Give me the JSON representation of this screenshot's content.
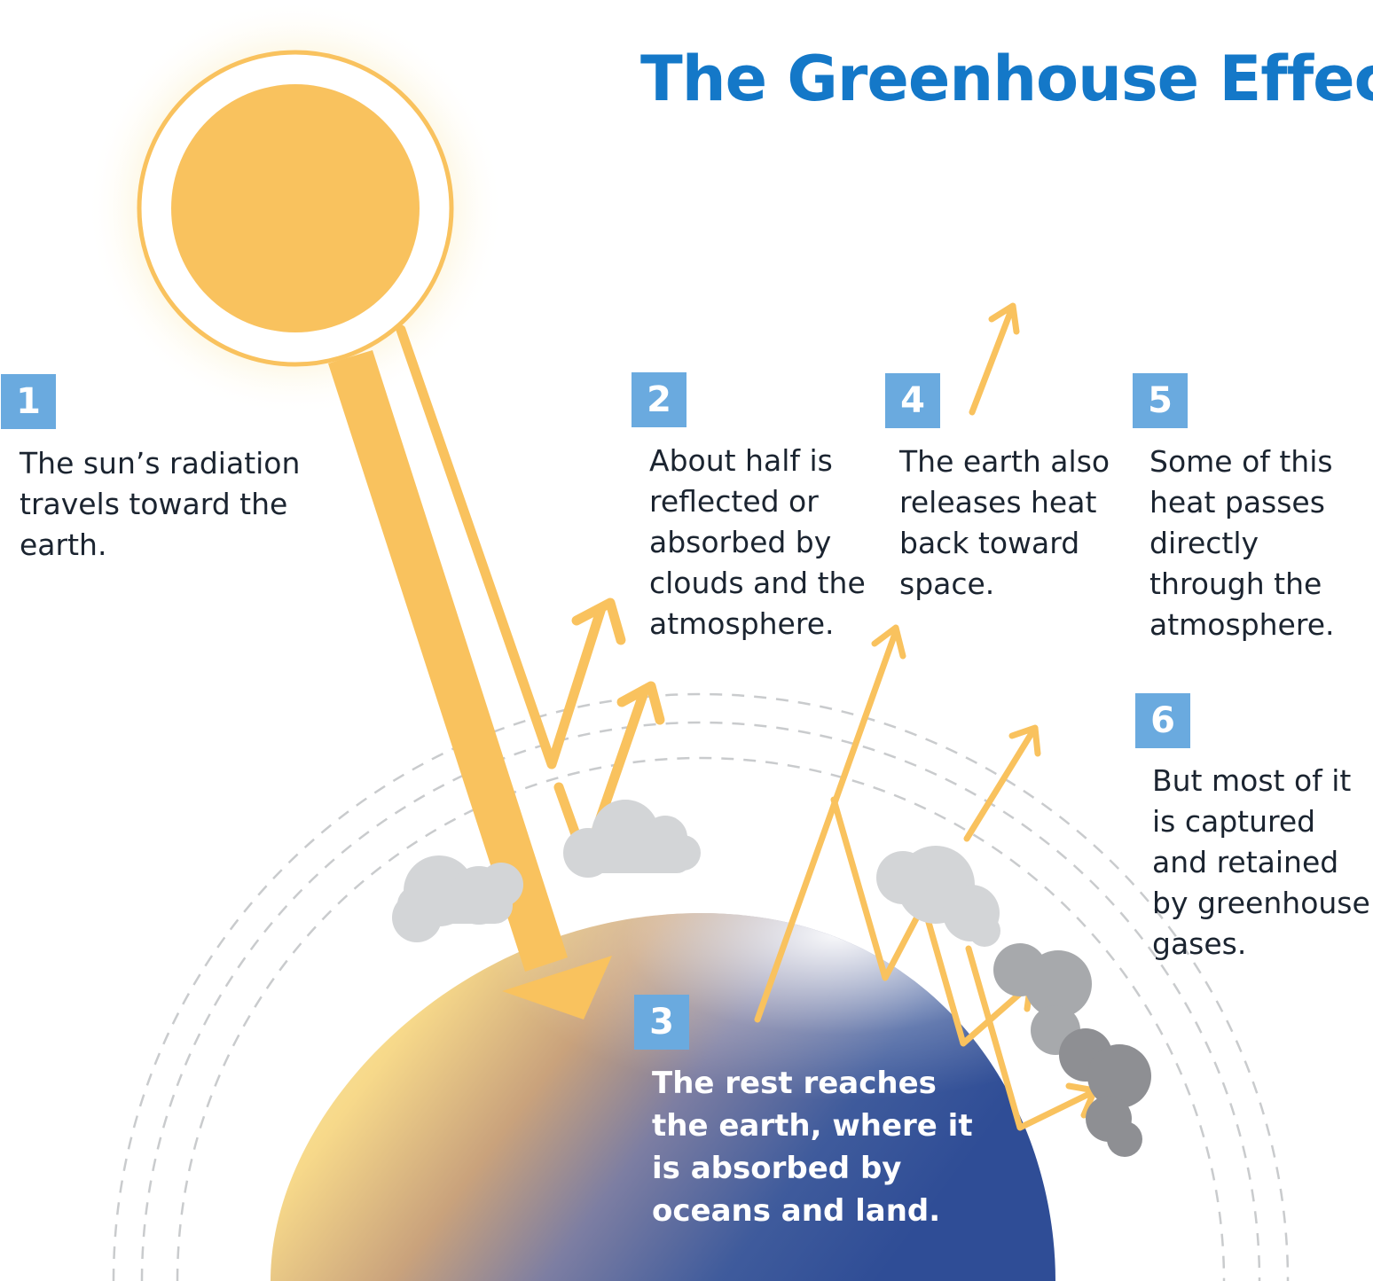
{
  "title": "The Greenhouse Effect",
  "colors": {
    "title": "#1478c8",
    "badge": "#6aaadf",
    "sun": "#f9c25e",
    "arrow": "#f9c25e",
    "earth_warm": "#f7d98a",
    "earth_cool": "#2f4d96",
    "cloud_light": "#d3d5d7",
    "cloud_dark": "#8e8f93"
  },
  "steps": [
    {
      "number": "1",
      "text": "The sun’s radiation\ntravels toward the\nearth."
    },
    {
      "number": "2",
      "text": "About half is\nreflected or\nabsorbed by\nclouds and the\natmosphere."
    },
    {
      "number": "3",
      "text": "The rest reaches\nthe earth, where it\nis absorbed by\noceans and land."
    },
    {
      "number": "4",
      "text": "The earth also\nreleases heat\nback toward\nspace."
    },
    {
      "number": "5",
      "text": "Some of this\nheat passes\ndirectly\nthrough the\natmosphere."
    },
    {
      "number": "6",
      "text": "But most of it\nis captured\nand retained\nby greenhouse\ngases."
    }
  ],
  "icons": [
    "sun-icon",
    "earth-icon",
    "cloud-icon",
    "greenhouse-gas-cloud-icon",
    "arrow-icon"
  ]
}
